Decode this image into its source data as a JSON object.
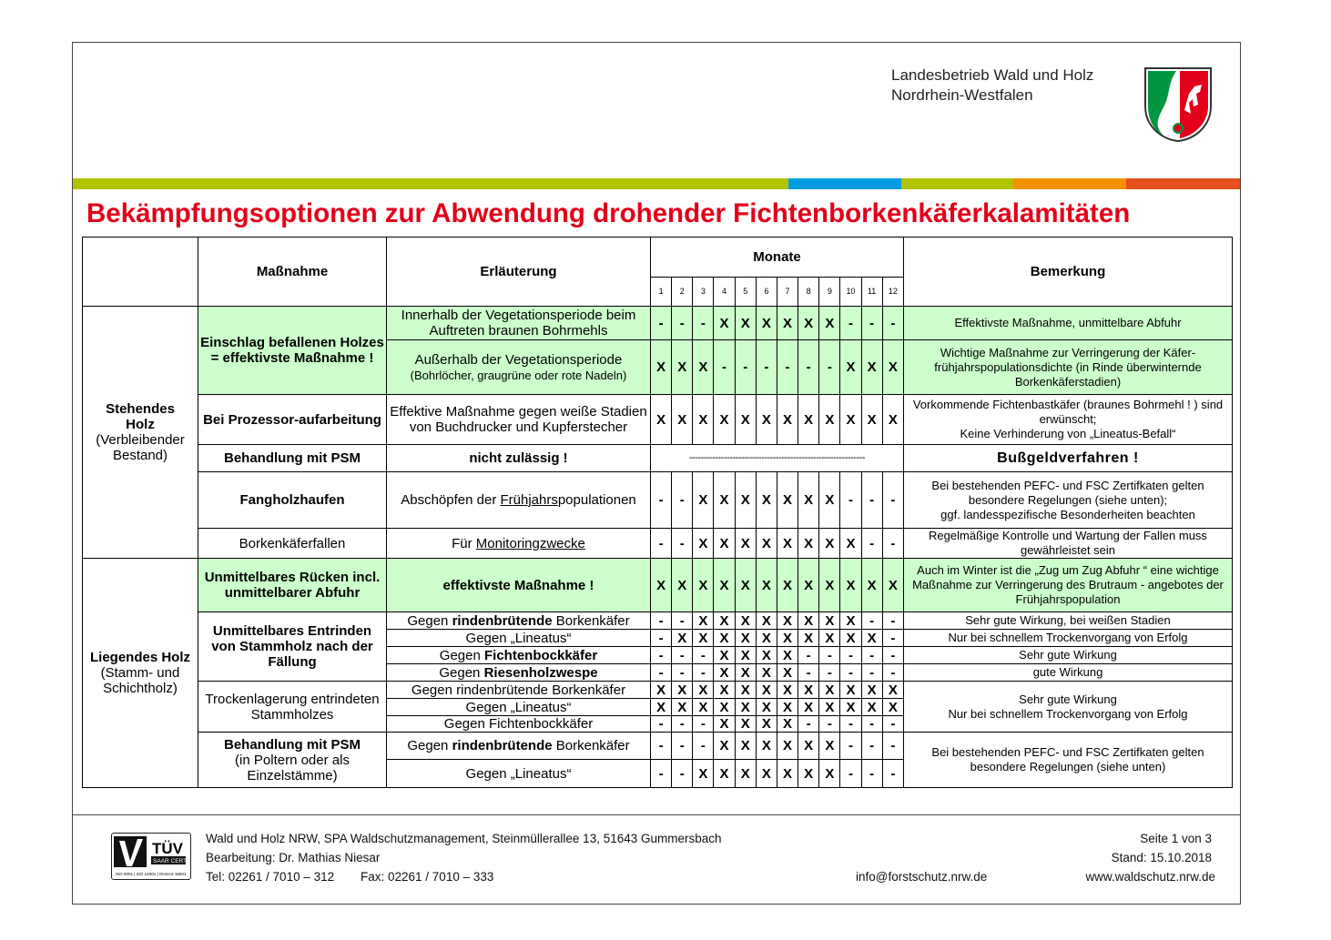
{
  "header": {
    "org_line1": "Landesbetrieb Wald und Holz",
    "org_line2": "Nordrhein-Westfalen",
    "logo": "nrw-coat-of-arms"
  },
  "colors": {
    "title": "#e2001a",
    "highlight": "#ccffcc",
    "bar_green": "#b2c400",
    "bar_blue": "#009ee0",
    "bar_orange": "#f39200",
    "bar_red": "#e6511d"
  },
  "title": "Bekämpfungsoptionen zur Abwendung drohender Fichtenborkenkäferkalamitäten",
  "table": {
    "head": {
      "massnahme": "Maßnahme",
      "erlaeuterung": "Erläuterung",
      "monate": "Monate",
      "bemerkung": "Bemerkung",
      "months": [
        "1",
        "2",
        "3",
        "4",
        "5",
        "6",
        "7",
        "8",
        "9",
        "10",
        "11",
        "12"
      ]
    },
    "groups": {
      "stehend_1": "Stehendes",
      "stehend_2": "Holz",
      "stehend_3": "(Verbleibender",
      "stehend_4": "Bestand)",
      "liegend_1": "Liegendes Holz",
      "liegend_2": "(Stamm- und",
      "liegend_3": "Schichtholz)"
    },
    "rows": [
      {
        "massnahme": "Einschlag befallenen Holzes",
        "massnahme2": "= effektivste Maßnahme !",
        "erl": "Innerhalb der Vegetationsperiode beim Auftreten braunen Bohrmehls",
        "months": [
          "-",
          "-",
          "-",
          "X",
          "X",
          "X",
          "X",
          "X",
          "X",
          "-",
          "-",
          "-"
        ],
        "bem": "Effektivste Maßnahme, unmittelbare Abfuhr"
      },
      {
        "erl": "Außerhalb der Vegetationsperiode",
        "erl2": "(Bohrlöcher, graugrüne oder rote Nadeln)",
        "months": [
          "X",
          "X",
          "X",
          "-",
          "-",
          "-",
          "-",
          "-",
          "-",
          "X",
          "X",
          "X"
        ],
        "bem": "Wichtige Maßnahme zur Verringerung der  Käfer-frühjahrspopulationsdichte (in Rinde überwinternde Borkenkäferstadien)"
      },
      {
        "massnahme": "Bei Prozessor-aufarbeitung",
        "erl": "Effektive Maßnahme gegen weiße Stadien von Buchdrucker und Kupferstecher",
        "months": [
          "X",
          "X",
          "X",
          "X",
          "X",
          "X",
          "X",
          "X",
          "X",
          "X",
          "X",
          "X"
        ],
        "bem": "Vorkommende Fichtenbastkäfer (braunes  Bohrmehl ! ) sind erwünscht;",
        "bem2": "Keine Verhinderung von „Lineatus-Befall“"
      },
      {
        "massnahme": "Behandlung mit PSM",
        "erl": "nicht zulässig !",
        "months_text": "-------------------------------------------------------------",
        "bem": "Bußgeldverfahren !"
      },
      {
        "massnahme": "Fangholzhaufen",
        "erl_a": "Abschöpfen der ",
        "erl_u": "Frühjahrs",
        "erl_b": "populationen",
        "months": [
          "-",
          "-",
          "X",
          "X",
          "X",
          "X",
          "X",
          "X",
          "X",
          "-",
          "-",
          "-"
        ],
        "bem": "Bei bestehenden PEFC- und FSC Zertifkaten gelten besondere Regelungen (siehe unten);",
        "bem2": "ggf. landesspezifische Besonderheiten beachten"
      },
      {
        "massnahme": "Borkenkäferfallen",
        "erl_a": "Für ",
        "erl_u": "Monitoringzwecke",
        "months": [
          "-",
          "-",
          "X",
          "X",
          "X",
          "X",
          "X",
          "X",
          "X",
          "X",
          "-",
          "-"
        ],
        "bem": "Regelmäßige Kontrolle und Wartung der Fallen muss gewährleistet sein"
      },
      {
        "massnahme": "Unmittelbares Rücken incl. unmittelbarer Abfuhr",
        "erl": "effektivste Maßnahme !",
        "months": [
          "X",
          "X",
          "X",
          "X",
          "X",
          "X",
          "X",
          "X",
          "X",
          "X",
          "X",
          "X"
        ],
        "bem": "Auch im Winter ist die „Zug um Zug Abfuhr “ eine wichtige Maßnahme zur Verringerung des Brutraum - angebotes der Frühjahrspopulation"
      },
      {
        "massnahme": "Unmittelbares Entrinden von Stammholz nach der Fällung",
        "erl_a": "Gegen ",
        "erl_b": "rindenbrütende",
        "erl_c": " Borkenkäfer",
        "months": [
          "-",
          "-",
          "X",
          "X",
          "X",
          "X",
          "X",
          "X",
          "X",
          "X",
          "-",
          "-"
        ],
        "bem": "Sehr gute Wirkung, bei weißen Stadien"
      },
      {
        "erl_a": "Gegen „Lineatus“",
        "months": [
          "-",
          "X",
          "X",
          "X",
          "X",
          "X",
          "X",
          "X",
          "X",
          "X",
          "X",
          "-"
        ],
        "bem": "Nur bei schnellem Trockenvorgang von Erfolg"
      },
      {
        "erl_a": "Gegen ",
        "erl_b": "Fichtenbockkäfer",
        "months": [
          "-",
          "-",
          "-",
          "X",
          "X",
          "X",
          "X",
          "-",
          "-",
          "-",
          "-",
          "-"
        ],
        "bem": "Sehr gute Wirkung"
      },
      {
        "erl_a": "Gegen ",
        "erl_b": "Riesenholzwespe",
        "months": [
          "-",
          "-",
          "-",
          "X",
          "X",
          "X",
          "X",
          "-",
          "-",
          "-",
          "-",
          "-"
        ],
        "bem": "gute Wirkung"
      },
      {
        "massnahme": "Trockenlagerung entrindeten Stammholzes",
        "erl_a": "Gegen rindenbrütende Borkenkäfer",
        "months": [
          "X",
          "X",
          "X",
          "X",
          "X",
          "X",
          "X",
          "X",
          "X",
          "X",
          "X",
          "X"
        ],
        "bem": "Sehr gute Wirkung",
        "bem2": "Nur bei schnellem Trockenvorgang von Erfolg"
      },
      {
        "erl_a": "Gegen „Lineatus“",
        "months": [
          "X",
          "X",
          "X",
          "X",
          "X",
          "X",
          "X",
          "X",
          "X",
          "X",
          "X",
          "X"
        ]
      },
      {
        "erl_a": "Gegen Fichtenbockkäfer",
        "months": [
          "-",
          "-",
          "-",
          "X",
          "X",
          "X",
          "X",
          "-",
          "-",
          "-",
          "-",
          "-"
        ]
      },
      {
        "massnahme": "Behandlung mit PSM",
        "massnahme2": "(in Poltern oder als Einzelstämme)",
        "erl_a": "Gegen ",
        "erl_b": "rindenbrütende",
        "erl_c": " Borkenkäfer",
        "months": [
          "-",
          "-",
          "-",
          "X",
          "X",
          "X",
          "X",
          "X",
          "X",
          "-",
          "-",
          "-"
        ],
        "bem": "Bei bestehenden PEFC- und FSC Zertifkaten gelten besondere Regelungen (siehe unten)"
      },
      {
        "erl_a": "Gegen „Lineatus“",
        "months": [
          "-",
          "-",
          "X",
          "X",
          "X",
          "X",
          "X",
          "X",
          "X",
          "-",
          "-",
          "-"
        ]
      }
    ]
  },
  "footer": {
    "line1": "Wald und Holz NRW, SPA Waldschutzmanagement,  Steinmüllerallee 13, 51643 Gummersbach",
    "line2": "Bearbeitung: Dr. Mathias Niesar",
    "tel": "Tel: 02261 / 7010 – 312",
    "fax": "Fax: 02261 / 7010 – 333",
    "email": "info@forstschutz.nrw.de",
    "page": "Seite 1 von 3",
    "stand": "Stand: 15.10.2018",
    "web": "www.waldschutz.nrw.de",
    "cert_logo": "TÜV SAAR CERT",
    "cert_text": "ISO 9001 | ISO 14001 | OHSAS 18001"
  }
}
